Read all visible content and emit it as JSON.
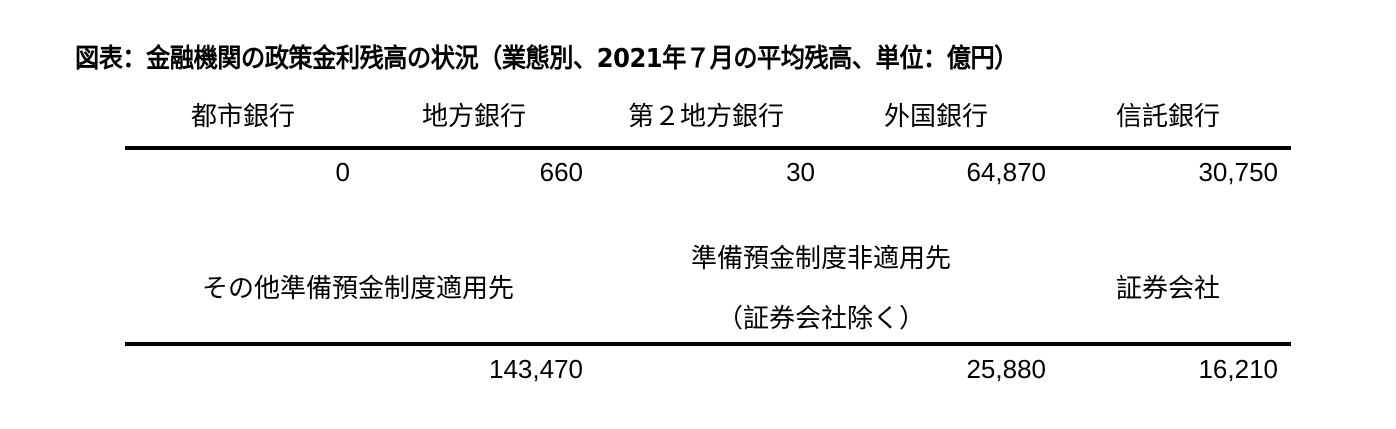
{
  "title": "図表：金融機関の政策金利残高の状況（業態別、2021年７月の平均残高、単位：億円）",
  "table1": {
    "headers": [
      "都市銀行",
      "地方銀行",
      "第２地方銀行",
      "外国銀行",
      "信託銀行"
    ],
    "values": [
      "0",
      "660",
      "30",
      "64,870",
      "30,750"
    ]
  },
  "table2": {
    "headers": [
      "その他準備預金制度適用先",
      "準備預金制度非適用先",
      "（証券会社除く）",
      "証券会社"
    ],
    "values": [
      "143,470",
      "25,880",
      "16,210"
    ]
  }
}
